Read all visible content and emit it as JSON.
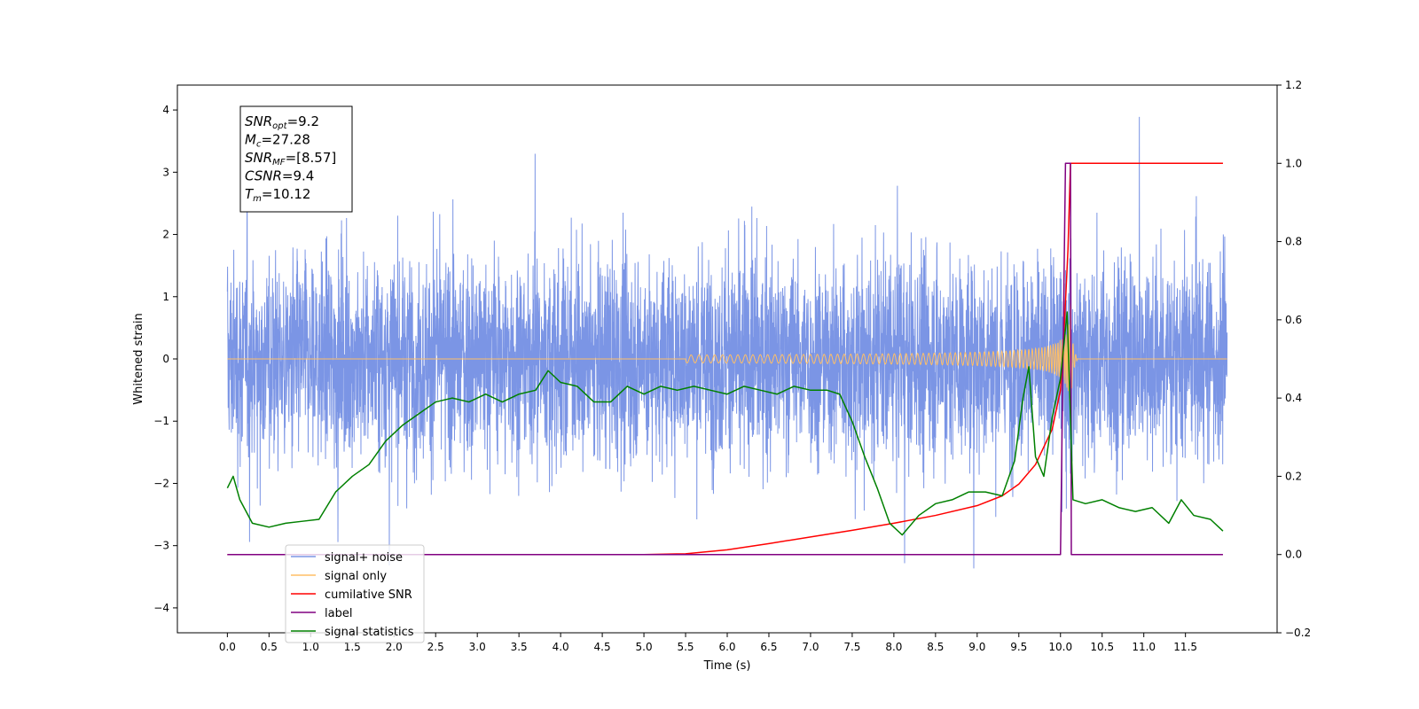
{
  "chart_data": {
    "type": "line",
    "xlabel": "Time (s)",
    "ylabel": "Whitened strain",
    "xlim": [
      -0.6,
      12.6
    ],
    "ylim": [
      -4.4,
      4.4
    ],
    "y2lim": [
      -0.2,
      1.2
    ],
    "x_ticks": [
      0.0,
      0.5,
      1.0,
      1.5,
      2.0,
      2.5,
      3.0,
      3.5,
      4.0,
      4.5,
      5.0,
      5.5,
      6.0,
      6.5,
      7.0,
      7.5,
      8.0,
      8.5,
      9.0,
      9.5,
      10.0,
      10.5,
      11.0,
      11.5
    ],
    "x_tick_labels": [
      "0.0",
      "0.5",
      "1.0",
      "1.5",
      "2.0",
      "2.5",
      "3.0",
      "3.5",
      "4.0",
      "4.5",
      "5.0",
      "5.5",
      "6.0",
      "6.5",
      "7.0",
      "7.5",
      "8.0",
      "8.5",
      "9.0",
      "9.5",
      "10.0",
      "10.5",
      "11.0",
      "11.5"
    ],
    "y_ticks": [
      -4,
      -3,
      -2,
      -1,
      0,
      1,
      2,
      3,
      4
    ],
    "y_tick_labels": [
      "−4",
      "−3",
      "−2",
      "−1",
      "0",
      "1",
      "2",
      "3",
      "4"
    ],
    "y2_ticks": [
      -0.2,
      0.0,
      0.2,
      0.4,
      0.6,
      0.8,
      1.0,
      1.2
    ],
    "y2_tick_labels": [
      "−0.2",
      "0.0",
      "0.2",
      "0.4",
      "0.6",
      "0.8",
      "1.0",
      "1.2"
    ],
    "grid": false,
    "legend_position": "lower-left",
    "series": [
      {
        "name": "signal+ noise",
        "axis": "left",
        "color": "#7b95e5",
        "x": [
          0,
          12
        ],
        "note_style": "dense noise band",
        "y_range": [
          -3.9,
          4.1
        ]
      },
      {
        "name": "signal only",
        "axis": "left",
        "color": "#ffbf66",
        "chirp_merger_time": 10.12,
        "peak_amplitude": 0.9
      },
      {
        "name": "cumilative SNR",
        "axis": "right",
        "color": "#ff0000",
        "x": [
          0.0,
          5.0,
          5.5,
          6.0,
          6.5,
          7.0,
          7.5,
          8.0,
          8.5,
          9.0,
          9.3,
          9.5,
          9.7,
          9.9,
          10.0,
          10.05,
          10.09,
          10.12,
          11.95
        ],
        "y": [
          0.0,
          0.0,
          0.002,
          0.012,
          0.028,
          0.045,
          0.062,
          0.08,
          0.1,
          0.125,
          0.15,
          0.18,
          0.23,
          0.32,
          0.42,
          0.6,
          0.78,
          1.0,
          1.0
        ]
      },
      {
        "name": "label",
        "axis": "right",
        "color": "#800080",
        "x": [
          0.0,
          10.0,
          10.06,
          10.12,
          10.13,
          11.95
        ],
        "y": [
          0.0,
          0.0,
          1.0,
          1.0,
          0.0,
          0.0
        ]
      },
      {
        "name": "signal statistics",
        "axis": "right",
        "color": "#008000",
        "x": [
          0.0,
          0.07,
          0.15,
          0.3,
          0.5,
          0.7,
          0.9,
          1.1,
          1.3,
          1.5,
          1.7,
          1.9,
          2.1,
          2.3,
          2.5,
          2.7,
          2.9,
          3.1,
          3.3,
          3.5,
          3.7,
          3.85,
          4.0,
          4.2,
          4.4,
          4.6,
          4.8,
          5.0,
          5.2,
          5.4,
          5.6,
          5.8,
          6.0,
          6.2,
          6.4,
          6.6,
          6.8,
          7.0,
          7.2,
          7.35,
          7.5,
          7.65,
          7.8,
          7.95,
          8.1,
          8.3,
          8.5,
          8.7,
          8.9,
          9.1,
          9.3,
          9.45,
          9.55,
          9.62,
          9.7,
          9.8,
          9.9,
          10.0,
          10.08,
          10.15,
          10.3,
          10.5,
          10.7,
          10.9,
          11.1,
          11.3,
          11.45,
          11.6,
          11.8,
          11.95
        ],
        "y": [
          0.17,
          0.2,
          0.14,
          0.08,
          0.07,
          0.08,
          0.085,
          0.09,
          0.16,
          0.2,
          0.23,
          0.29,
          0.33,
          0.36,
          0.39,
          0.4,
          0.39,
          0.41,
          0.39,
          0.41,
          0.42,
          0.47,
          0.44,
          0.43,
          0.39,
          0.39,
          0.43,
          0.41,
          0.43,
          0.42,
          0.43,
          0.42,
          0.41,
          0.43,
          0.42,
          0.41,
          0.43,
          0.42,
          0.42,
          0.41,
          0.34,
          0.25,
          0.17,
          0.08,
          0.05,
          0.1,
          0.13,
          0.14,
          0.16,
          0.16,
          0.15,
          0.24,
          0.4,
          0.48,
          0.25,
          0.2,
          0.35,
          0.45,
          0.62,
          0.14,
          0.13,
          0.14,
          0.12,
          0.11,
          0.12,
          0.08,
          0.14,
          0.1,
          0.09,
          0.06
        ]
      }
    ],
    "annotation_box": [
      {
        "main": "SNR",
        "sub": "opt",
        "value": "=9.2"
      },
      {
        "main": "M",
        "sub": "c",
        "value": "=27.28"
      },
      {
        "main": "SNR",
        "sub": "MF",
        "value": "=[8.57]"
      },
      {
        "main": "CSNR",
        "sub": "",
        "value": "=9.4"
      },
      {
        "main": "T",
        "sub": "m",
        "value": "=10.12"
      }
    ]
  }
}
